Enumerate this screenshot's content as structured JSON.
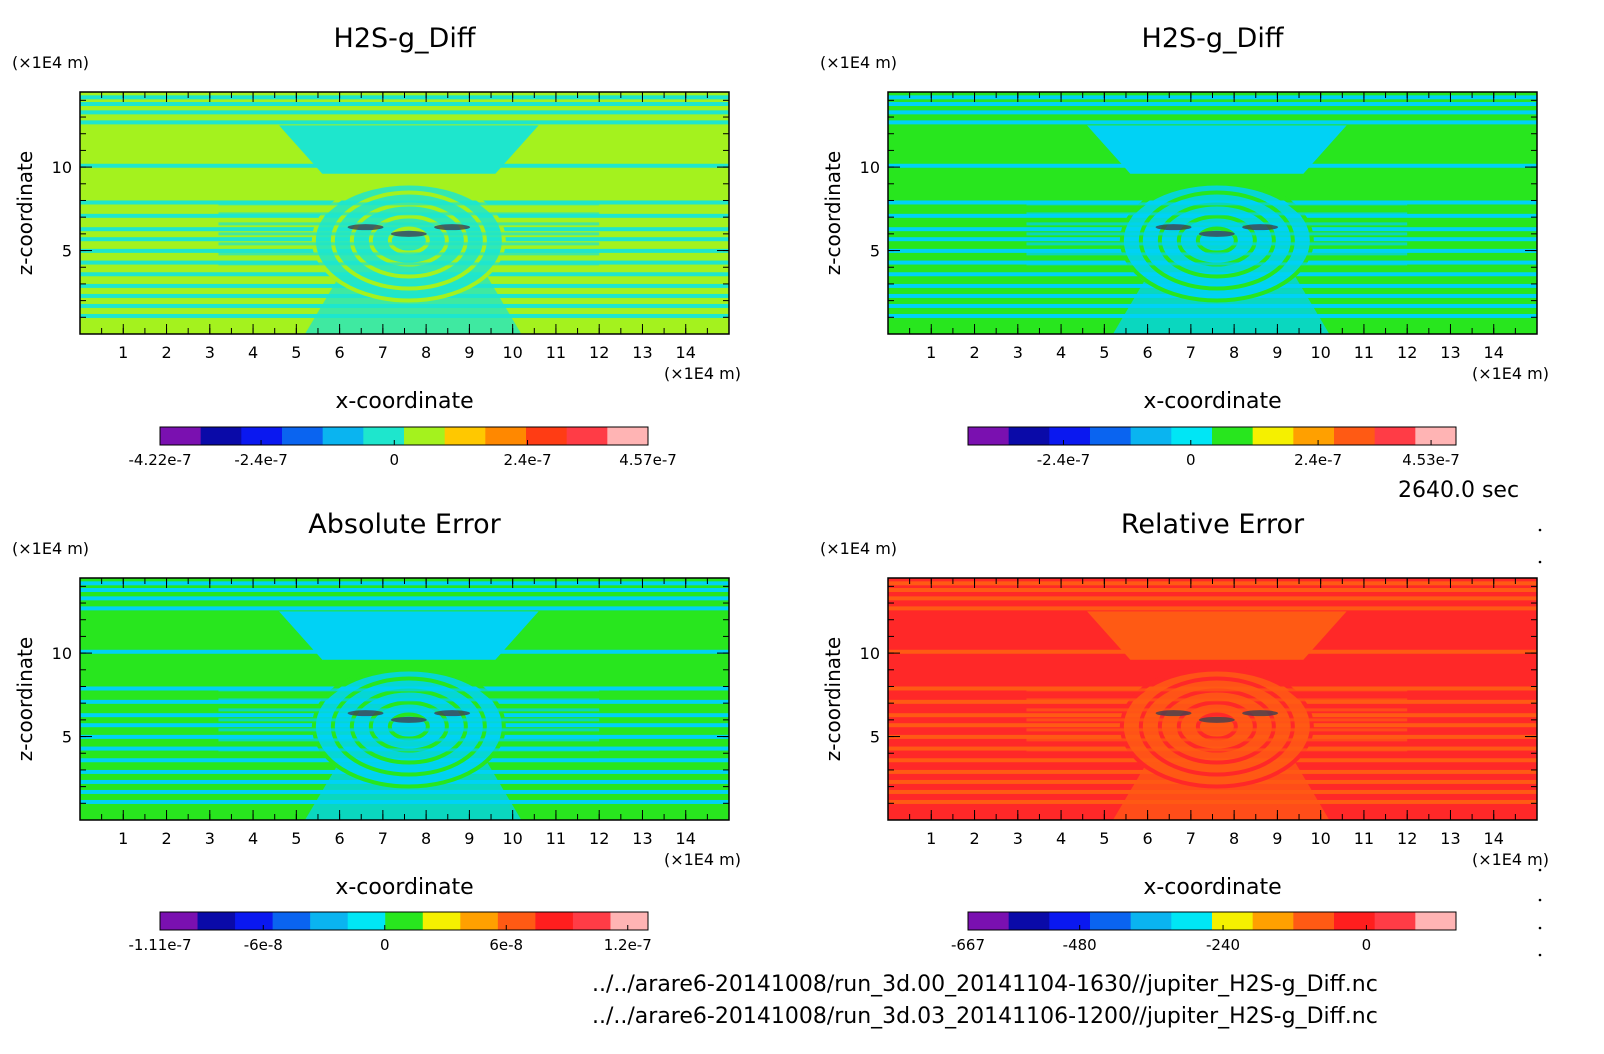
{
  "chart_data": [
    {
      "type": "heatmap",
      "title": "H2S-g_Diff",
      "xlabel": "x-coordinate",
      "ylabel": "z-coordinate",
      "x_unit": "(×1E4 m)",
      "y_unit": "(×1E4 m)",
      "xlim": [
        0,
        15
      ],
      "ylim": [
        0,
        14.5
      ],
      "x_ticks": [
        1,
        2,
        3,
        4,
        5,
        6,
        7,
        8,
        9,
        10,
        11,
        12,
        13,
        14
      ],
      "y_ticks": [
        5,
        10
      ],
      "background_color": "#a4f21e",
      "pattern_color": "#1ee6cd",
      "colorbar": {
        "colors": [
          "#7a10b0",
          "#0a0aa8",
          "#0a18f0",
          "#0a64f0",
          "#0ab4f0",
          "#1ee6cd",
          "#a4f21e",
          "#ffc800",
          "#ff8800",
          "#ff3c14",
          "#ff3c46",
          "#ffb4b4"
        ],
        "labels": [
          {
            "text": "-4.22e-7",
            "value": -4.22e-07
          },
          {
            "text": "-2.4e-7",
            "value": -2.4e-07
          },
          {
            "text": "0",
            "value": 0
          },
          {
            "text": "2.4e-7",
            "value": 2.4e-07
          },
          {
            "text": "4.57e-7",
            "value": 4.57e-07
          }
        ],
        "range": [
          -4.22e-07,
          4.57e-07
        ]
      }
    },
    {
      "type": "heatmap",
      "title": "H2S-g_Diff",
      "xlabel": "x-coordinate",
      "ylabel": "z-coordinate",
      "x_unit": "(×1E4 m)",
      "y_unit": "(×1E4 m)",
      "xlim": [
        0,
        15
      ],
      "ylim": [
        0,
        14.5
      ],
      "x_ticks": [
        1,
        2,
        3,
        4,
        5,
        6,
        7,
        8,
        9,
        10,
        11,
        12,
        13,
        14
      ],
      "y_ticks": [
        5,
        10
      ],
      "background_color": "#28e61e",
      "pattern_color": "#00d2f5",
      "colorbar": {
        "colors": [
          "#7a10b0",
          "#0a0aa8",
          "#0a18f0",
          "#0a64f0",
          "#0ab4f0",
          "#00e6f5",
          "#28e61e",
          "#f5f000",
          "#ffa000",
          "#ff5a14",
          "#ff3c46",
          "#ffb4b4"
        ],
        "labels": [
          {
            "text": "-2.4e-7",
            "value": -2.4e-07
          },
          {
            "text": "0",
            "value": 0
          },
          {
            "text": "2.4e-7",
            "value": 2.4e-07
          },
          {
            "text": "4.53e-7",
            "value": 4.53e-07
          }
        ],
        "range": [
          -4.2e-07,
          5e-07
        ]
      }
    },
    {
      "type": "heatmap",
      "title": "Absolute Error",
      "xlabel": "x-coordinate",
      "ylabel": "z-coordinate",
      "x_unit": "(×1E4 m)",
      "y_unit": "(×1E4 m)",
      "xlim": [
        0,
        15
      ],
      "ylim": [
        0,
        14.5
      ],
      "x_ticks": [
        1,
        2,
        3,
        4,
        5,
        6,
        7,
        8,
        9,
        10,
        11,
        12,
        13,
        14
      ],
      "y_ticks": [
        5,
        10
      ],
      "background_color": "#28e61e",
      "pattern_color": "#00d2f5",
      "colorbar": {
        "colors": [
          "#7a10b0",
          "#0a0aa8",
          "#0a18f0",
          "#0a64f0",
          "#0ab4f0",
          "#00e6f5",
          "#28e61e",
          "#f5f000",
          "#ffa000",
          "#ff5a14",
          "#ff1e1e",
          "#ff3c46",
          "#ffb4b4"
        ],
        "labels": [
          {
            "text": "-1.11e-7",
            "value": -1.11e-07
          },
          {
            "text": "-6e-8",
            "value": -6e-08
          },
          {
            "text": "0",
            "value": 0
          },
          {
            "text": "6e-8",
            "value": 6e-08
          },
          {
            "text": "1.2e-7",
            "value": 1.2e-07
          }
        ],
        "range": [
          -1.11e-07,
          1.3e-07
        ]
      }
    },
    {
      "type": "heatmap",
      "title": "Relative Error",
      "xlabel": "x-coordinate",
      "ylabel": "z-coordinate",
      "x_unit": "(×1E4 m)",
      "y_unit": "(×1E4 m)",
      "xlim": [
        0,
        15
      ],
      "ylim": [
        0,
        14.5
      ],
      "x_ticks": [
        1,
        2,
        3,
        4,
        5,
        6,
        7,
        8,
        9,
        10,
        11,
        12,
        13,
        14
      ],
      "y_ticks": [
        5,
        10
      ],
      "background_color": "#ff2828",
      "pattern_color": "#ff5a14",
      "colorbar": {
        "colors": [
          "#7a10b0",
          "#0a0aa8",
          "#0a18f0",
          "#0a64f0",
          "#0ab4f0",
          "#00e6f5",
          "#f5f000",
          "#ffa000",
          "#ff5a14",
          "#ff1e1e",
          "#ff3c46",
          "#ffb4b4"
        ],
        "labels": [
          {
            "text": "-667",
            "value": -667
          },
          {
            "text": "-480",
            "value": -480
          },
          {
            "text": "-240",
            "value": -240
          },
          {
            "text": "0",
            "value": 0
          }
        ],
        "range": [
          -667,
          150
        ]
      }
    }
  ],
  "time_label": "2640.0 sec",
  "source_files": [
    "../../arare6-20141008/run_3d.00_20141104-1630//jupiter_H2S-g_Diff.nc",
    "../../arare6-20141008/run_3d.03_20141106-1200//jupiter_H2S-g_Diff.nc"
  ]
}
